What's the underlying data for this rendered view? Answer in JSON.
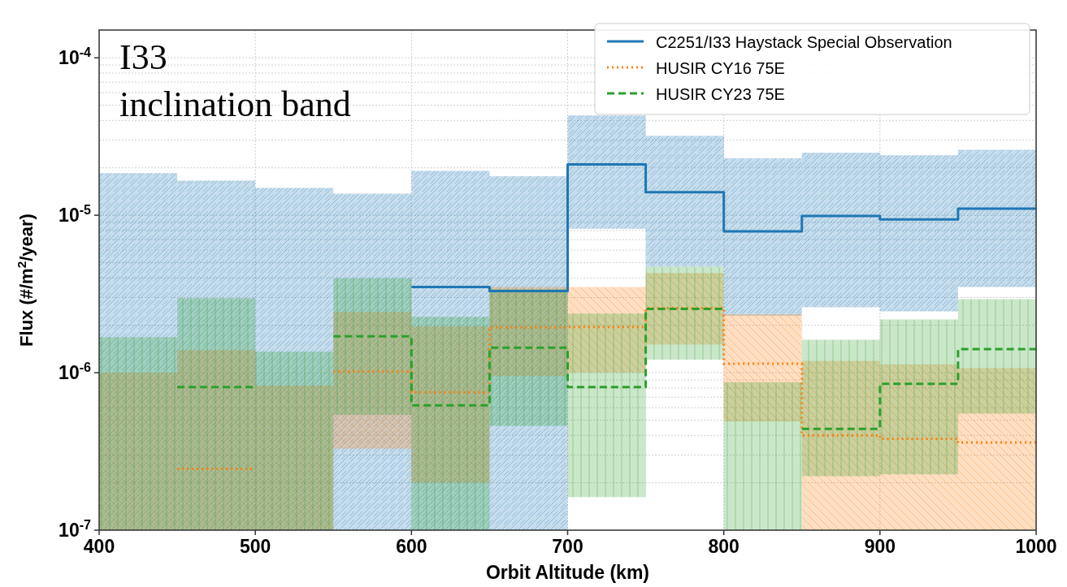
{
  "chart_data": {
    "type": "step",
    "xlabel": "Orbit Altitude (km)",
    "ylabel": "Flux (#/m$^{2}$/year)",
    "x": [
      400,
      450,
      500,
      550,
      600,
      650,
      700,
      750,
      800,
      850,
      900,
      950,
      1000
    ],
    "series": [
      {
        "name": "C2251/I33 Haystack Special Observation",
        "color": "#1f77b4",
        "line_style": "solid",
        "values": [
          null,
          null,
          null,
          null,
          3.5e-06,
          3.3e-06,
          2.1e-05,
          1.4e-05,
          7.9e-06,
          9.9e-06,
          9.4e-06,
          1.1e-05,
          1.1e-05
        ],
        "upper": [
          1.85e-05,
          1.66e-05,
          1.49e-05,
          1.37e-05,
          1.91e-05,
          1.77e-05,
          4.3e-05,
          3.2e-05,
          2.3e-05,
          2.5e-05,
          2.4e-05,
          2.6e-05,
          2.6e-05
        ],
        "lower": [
          1e-07,
          1e-07,
          1e-07,
          1e-07,
          1e-07,
          1e-07,
          8.2e-06,
          4.7e-06,
          2.3e-06,
          2.6e-06,
          2.45e-06,
          3.5e-06,
          3.5e-06
        ]
      },
      {
        "name": "HUSIR CY16 75E",
        "color": "#ff7f0e",
        "line_style": "dotted",
        "values": [
          null,
          2.45e-07,
          null,
          1.02e-06,
          7.5e-07,
          1.94e-06,
          1.95e-06,
          2.57e-06,
          1.14e-06,
          4e-07,
          3.8e-07,
          3.6e-07,
          3.6e-07
        ],
        "upper": [
          1e-06,
          1.39e-06,
          8.3e-07,
          2.43e-06,
          1.96e-06,
          3.5e-06,
          3.5e-06,
          4.3e-06,
          2.35e-06,
          1.19e-06,
          1.13e-06,
          1.07e-06,
          1.07e-06
        ],
        "lower": [
          1e-07,
          1e-07,
          1e-07,
          3.3e-07,
          2e-07,
          9.5e-07,
          1e-06,
          1.51e-06,
          4.9e-07,
          1e-07,
          1e-07,
          1e-07,
          1e-07
        ]
      },
      {
        "name": "HUSIR CY23 75E",
        "color": "#2ca02c",
        "line_style": "dashed",
        "values": [
          null,
          8.1e-07,
          null,
          1.7e-06,
          6.2e-07,
          1.44e-06,
          8.1e-07,
          2.54e-06,
          null,
          4.4e-07,
          8.5e-07,
          1.41e-06,
          1.41e-06
        ],
        "upper": [
          1.68e-06,
          2.97e-06,
          1.36e-06,
          3.98e-06,
          2.26e-06,
          3.4e-06,
          2.37e-06,
          4.7e-06,
          8.7e-07,
          1.62e-06,
          2.18e-06,
          2.93e-06,
          2.93e-06
        ],
        "lower": [
          1e-07,
          1e-07,
          1e-07,
          5.4e-07,
          1e-07,
          4.6e-07,
          1.62e-07,
          1.21e-06,
          1e-07,
          2.2e-07,
          2.26e-07,
          5.5e-07,
          5.5e-07
        ]
      }
    ],
    "xlim": [
      400,
      1000
    ],
    "xticks": [
      400,
      500,
      600,
      700,
      800,
      900,
      1000
    ],
    "ylim": [
      1e-07,
      0.00015
    ],
    "log": "y",
    "yticks": [
      {
        "value": 1e-07,
        "label": "10$^{-7}$"
      },
      {
        "value": 1e-06,
        "label": "10$^{-6}$"
      },
      {
        "value": 1e-05,
        "label": "10$^{-5}$"
      },
      {
        "value": 0.0001,
        "label": "10$^{-4}$"
      }
    ],
    "grid": true,
    "legend": "top right",
    "annotations": [
      "I33\ninclination band"
    ]
  }
}
